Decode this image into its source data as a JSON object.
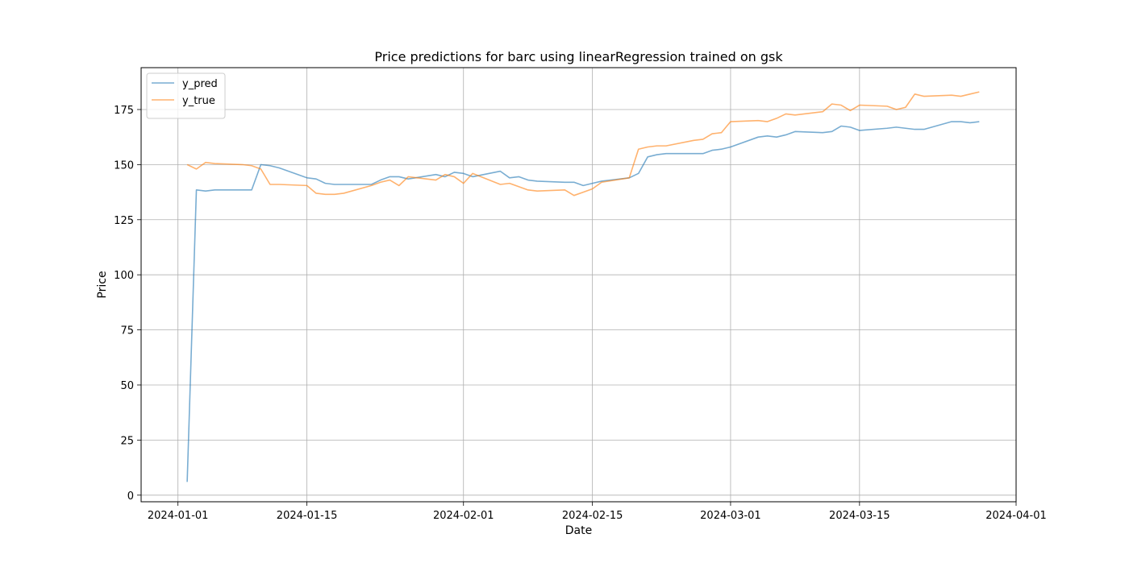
{
  "chart_data": {
    "type": "line",
    "title": "Price predictions for barc using linearRegression trained on gsk",
    "xlabel": "Date",
    "ylabel": "Price",
    "x_axis_type": "date",
    "xlim": [
      "2023-12-28",
      "2024-04-01"
    ],
    "ylim": [
      -3,
      194
    ],
    "xticks": [
      "2024-01-01",
      "2024-01-15",
      "2024-02-01",
      "2024-02-15",
      "2024-03-01",
      "2024-03-15",
      "2024-04-01"
    ],
    "yticks": [
      0,
      25,
      50,
      75,
      100,
      125,
      150,
      175
    ],
    "grid": true,
    "legend": "top-left",
    "x": [
      "2024-01-02",
      "2024-01-03",
      "2024-01-04",
      "2024-01-05",
      "2024-01-08",
      "2024-01-09",
      "2024-01-10",
      "2024-01-11",
      "2024-01-12",
      "2024-01-15",
      "2024-01-16",
      "2024-01-17",
      "2024-01-18",
      "2024-01-19",
      "2024-01-22",
      "2024-01-23",
      "2024-01-24",
      "2024-01-25",
      "2024-01-26",
      "2024-01-29",
      "2024-01-30",
      "2024-01-31",
      "2024-02-01",
      "2024-02-02",
      "2024-02-05",
      "2024-02-06",
      "2024-02-07",
      "2024-02-08",
      "2024-02-09",
      "2024-02-12",
      "2024-02-13",
      "2024-02-14",
      "2024-02-15",
      "2024-02-16",
      "2024-02-19",
      "2024-02-20",
      "2024-02-21",
      "2024-02-22",
      "2024-02-23",
      "2024-02-26",
      "2024-02-27",
      "2024-02-28",
      "2024-02-29",
      "2024-03-01",
      "2024-03-04",
      "2024-03-05",
      "2024-03-06",
      "2024-03-07",
      "2024-03-08",
      "2024-03-11",
      "2024-03-12",
      "2024-03-13",
      "2024-03-14",
      "2024-03-15",
      "2024-03-18",
      "2024-03-19",
      "2024-03-20",
      "2024-03-21",
      "2024-03-22",
      "2024-03-25",
      "2024-03-26",
      "2024-03-27",
      "2024-03-28"
    ],
    "series": [
      {
        "name": "y_pred",
        "color": "#1f77b4",
        "values": [
          6,
          138.5,
          138,
          138.5,
          138.5,
          138.5,
          150,
          149.5,
          148.5,
          144,
          143.5,
          141.5,
          141,
          141,
          141,
          143,
          144.5,
          144.5,
          143.5,
          145.5,
          144.5,
          146.5,
          146,
          144.5,
          147,
          144,
          144.5,
          143,
          142.5,
          142,
          142,
          140.5,
          141.5,
          142.5,
          144,
          146,
          153.5,
          154.5,
          155,
          155,
          155,
          156.5,
          157,
          158,
          162.5,
          163,
          162.5,
          163.5,
          165,
          164.5,
          165,
          167.5,
          167,
          165.5,
          166.5,
          167,
          166.5,
          166,
          166,
          169.5,
          169.5,
          169,
          169.5
        ]
      },
      {
        "name": "y_true",
        "color": "#ff7f0e",
        "values": [
          150,
          148,
          151,
          150.5,
          150,
          149.5,
          148,
          141,
          141,
          140.5,
          137,
          136.5,
          136.5,
          137,
          140.5,
          142,
          143,
          140.5,
          144.5,
          143,
          145.5,
          144.5,
          141.5,
          146,
          141,
          141.5,
          140,
          138.5,
          138,
          138.5,
          136,
          137.5,
          139,
          142,
          144,
          157,
          158,
          158.5,
          158.5,
          161,
          161.5,
          164,
          164.5,
          169.5,
          170,
          169.5,
          171,
          173,
          172.5,
          174,
          177.5,
          177,
          174.5,
          177,
          176.5,
          175,
          176,
          182,
          181,
          181.5,
          181,
          182,
          183
        ]
      }
    ]
  }
}
